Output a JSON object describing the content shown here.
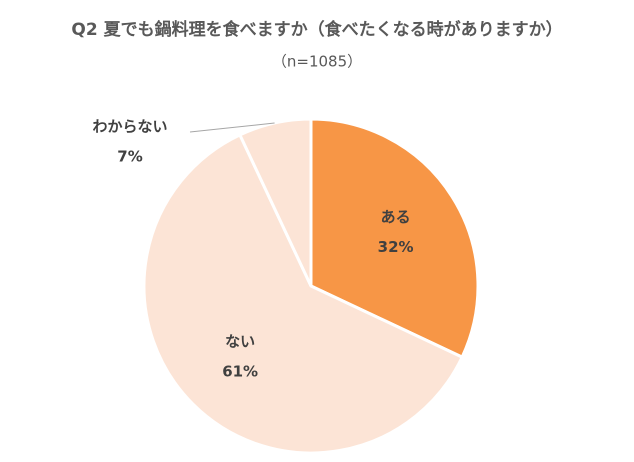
{
  "chart_data": {
    "type": "pie",
    "title": "Q2 夏でも鍋料理を食べますか（食べたくなる時がありますか）",
    "subtitle": "（n=1085）",
    "categories": [
      "ある",
      "ない",
      "わからない"
    ],
    "values": [
      32,
      61,
      7
    ],
    "value_labels": [
      "32%",
      "61%",
      "7%"
    ],
    "colors": [
      "#f79646",
      "#fce4d6",
      "#fce4d6"
    ]
  }
}
